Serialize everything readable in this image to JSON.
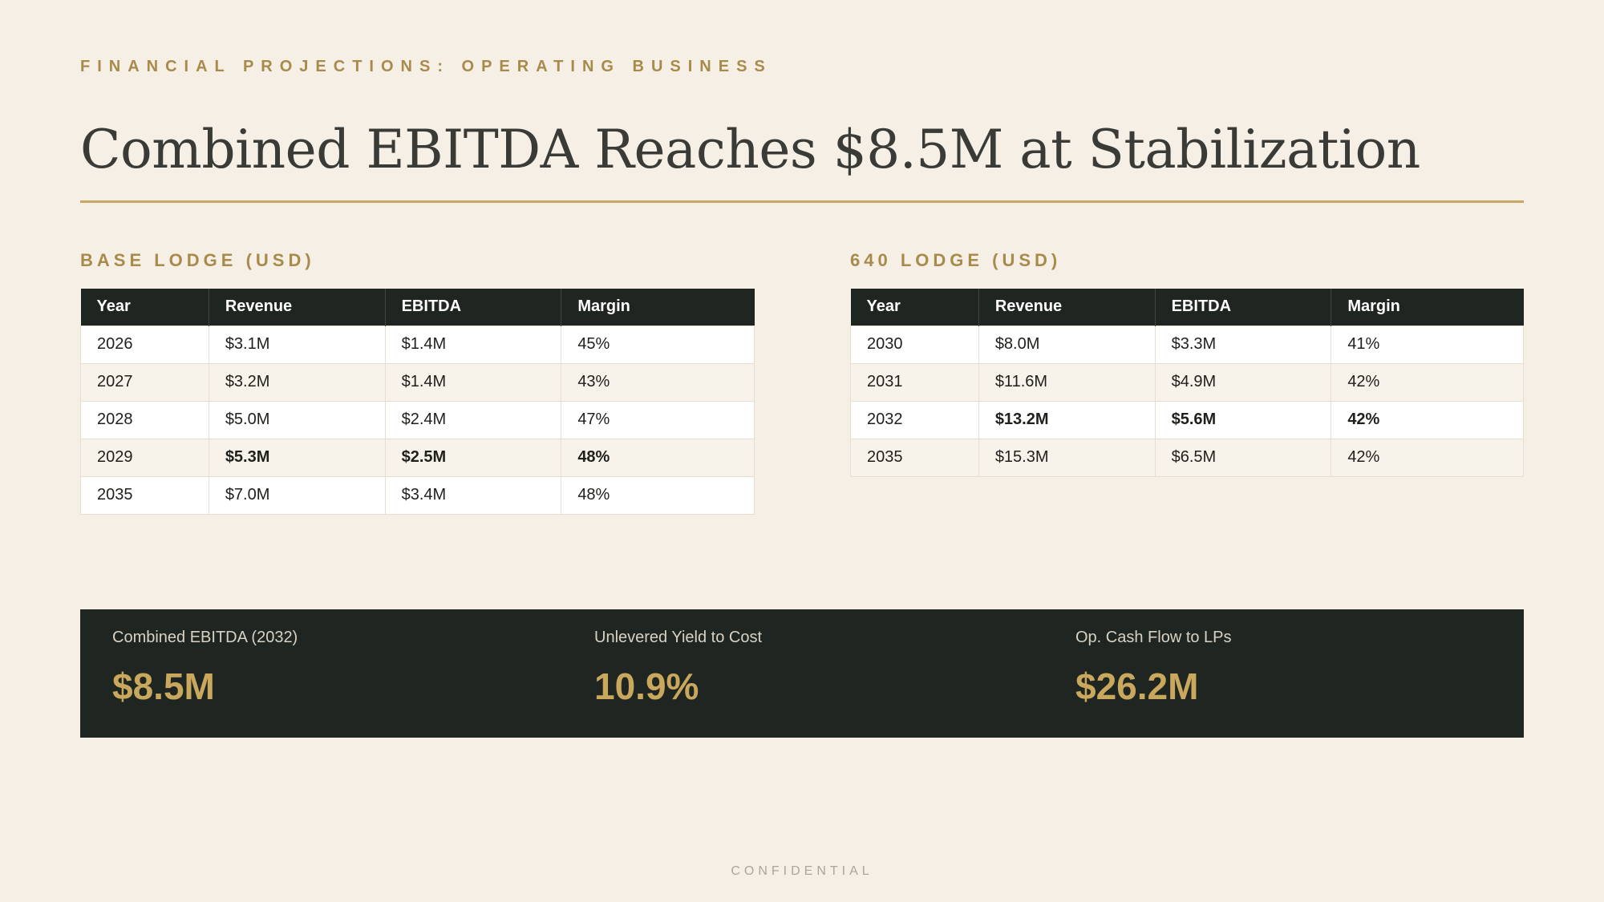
{
  "header": {
    "eyebrow": "FINANCIAL PROJECTIONS: OPERATING BUSINESS",
    "title": "Combined EBITDA Reaches $8.5M at Stabilization"
  },
  "base_lodge": {
    "label": "BASE LODGE (USD)",
    "columns": [
      "Year",
      "Revenue",
      "EBITDA",
      "Margin"
    ],
    "rows": [
      [
        "2026",
        "$3.1M",
        "$1.4M",
        "45%"
      ],
      [
        "2027",
        "$3.2M",
        "$1.4M",
        "43%"
      ],
      [
        "2028",
        "$5.0M",
        "$2.4M",
        "47%"
      ],
      [
        "2029",
        "$5.3M",
        "$2.5M",
        "48%"
      ],
      [
        "2035",
        "$7.0M",
        "$3.4M",
        "48%"
      ]
    ]
  },
  "lodge_640": {
    "label": "640 LODGE (USD)",
    "columns": [
      "Year",
      "Revenue",
      "EBITDA",
      "Margin"
    ],
    "rows": [
      [
        "2030",
        "$8.0M",
        "$3.3M",
        "41%"
      ],
      [
        "2031",
        "$11.6M",
        "$4.9M",
        "42%"
      ],
      [
        "2032",
        "$13.2M",
        "$5.6M",
        "42%"
      ],
      [
        "2035",
        "$15.3M",
        "$6.5M",
        "42%"
      ]
    ]
  },
  "stats": [
    {
      "label": "Combined EBITDA (2032)",
      "value": "$8.5M"
    },
    {
      "label": "Unlevered Yield to Cost",
      "value": "10.9%"
    },
    {
      "label": "Op. Cash Flow to LPs",
      "value": "$26.2M"
    }
  ],
  "footer": "CONFIDENTIAL",
  "colors": {
    "background": "#f5efe6",
    "accent_gold": "#a88a4a",
    "dark": "#1f2621",
    "stat_value": "#c9a85e"
  }
}
